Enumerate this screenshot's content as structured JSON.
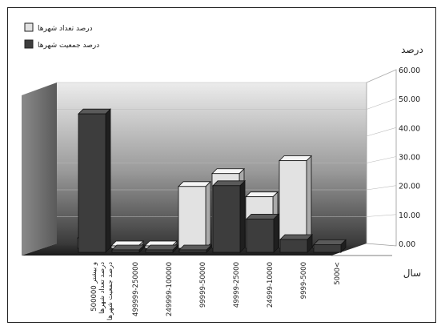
{
  "chart_data": {
    "type": "bar",
    "ylabel": "درصد",
    "xlabel": "سال",
    "ylim": [
      0,
      60
    ],
    "yticks": [
      "0.00",
      "10.00",
      "20.00",
      "30.00",
      "40.00",
      "50.00",
      "60.00"
    ],
    "legend_position": "top-left",
    "categories": [
      "5000<",
      "9999-5000",
      "24999-10000",
      "49999-25000",
      "99999-50000",
      "249999-100000",
      "499999-250000",
      "يا بيشتر 500000"
    ],
    "series": [
      {
        "name": "درصد تعداد شهرها",
        "color": "#e2e2e2",
        "values": [
          0,
          34,
          20,
          29,
          24,
          0,
          0,
          4
        ]
      },
      {
        "name": "درصد جمعیت شهرها",
        "color": "#3d3d3d",
        "values": [
          3,
          5,
          13,
          26,
          0,
          0,
          0,
          54
        ]
      }
    ],
    "category_label_lines": [
      [
        "5000<"
      ],
      [
        "9999-5000"
      ],
      [
        "24999-10000"
      ],
      [
        "49999-25000"
      ],
      [
        "99999-50000"
      ],
      [
        "249999-100000"
      ],
      [
        "499999-250000"
      ],
      [
        "و بيشتر 500000",
        "درصد تعداد شهرها",
        "درصد جمعیت شهرها"
      ]
    ]
  }
}
